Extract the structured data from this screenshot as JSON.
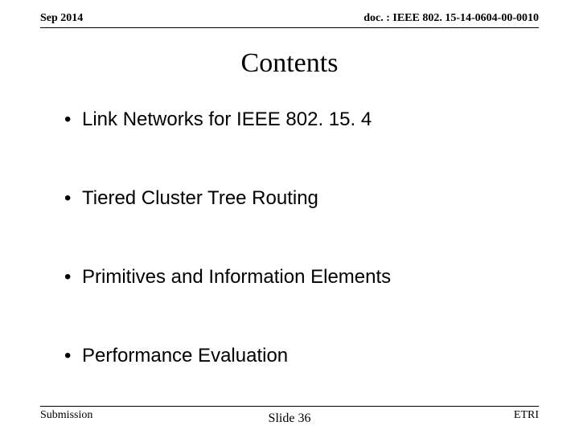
{
  "header": {
    "date": "Sep 2014",
    "docId": "doc. : IEEE 802. 15-14-0604-00-0010"
  },
  "title": "Contents",
  "bullets": [
    "Link Networks for IEEE 802. 15. 4",
    "Tiered Cluster Tree Routing",
    "Primitives and Information Elements",
    "Performance Evaluation"
  ],
  "footer": {
    "left": "Submission",
    "center": "Slide 36",
    "right": "ETRI"
  }
}
